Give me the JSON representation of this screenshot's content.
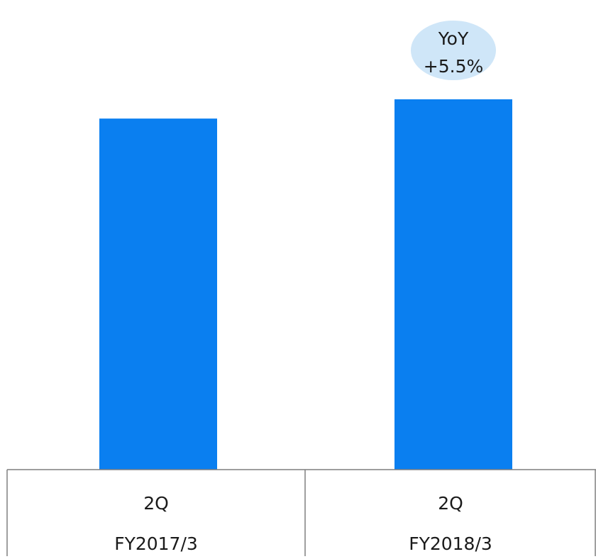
{
  "chart_data": {
    "type": "bar",
    "categories": [
      {
        "quarter": "2Q",
        "fiscal_year": "FY2017/3"
      },
      {
        "quarter": "2Q",
        "fiscal_year": "FY2018/3"
      }
    ],
    "values": [
      94.8,
      100
    ],
    "ylim": [
      0,
      100
    ],
    "annotation": {
      "line1": "YoY",
      "line2": "+5.5%"
    },
    "grid": false,
    "colors": {
      "bar": "#0a7ff0",
      "bubble": "#cfe6f8",
      "axis": "#7f7f7f"
    }
  }
}
